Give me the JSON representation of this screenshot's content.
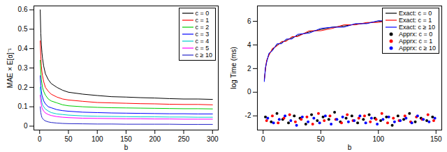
{
  "chart_data": [
    {
      "type": "line",
      "x_label": "b",
      "y_label": "MAE × E[α]⁻¹",
      "xlim": [
        -10,
        310
      ],
      "ylim": [
        -0.02,
        0.62
      ],
      "xticks": [
        0,
        50,
        100,
        150,
        200,
        250,
        300
      ],
      "yticks": [
        0,
        0.1,
        0.2,
        0.3,
        0.4,
        0.5,
        0.6
      ],
      "grid": false,
      "legend": "top-right",
      "x": [
        1,
        2,
        3,
        4,
        5,
        7,
        10,
        15,
        20,
        30,
        40,
        50,
        75,
        100,
        125,
        150,
        175,
        200,
        225,
        250,
        275,
        300
      ],
      "series": [
        {
          "name": "c = 0",
          "color": "#000000",
          "values": [
            0.6,
            0.48,
            0.42,
            0.38,
            0.35,
            0.31,
            0.27,
            0.24,
            0.22,
            0.2,
            0.185,
            0.175,
            0.165,
            0.158,
            0.152,
            0.15,
            0.147,
            0.145,
            0.142,
            0.14,
            0.14,
            0.138
          ]
        },
        {
          "name": "c = 1",
          "color": "#ff0000",
          "values": [
            0.44,
            0.36,
            0.31,
            0.28,
            0.26,
            0.23,
            0.2,
            0.18,
            0.165,
            0.15,
            0.14,
            0.135,
            0.128,
            0.122,
            0.12,
            0.118,
            0.116,
            0.115,
            0.113,
            0.112,
            0.112,
            0.11
          ]
        },
        {
          "name": "c = 2",
          "color": "#00cd00",
          "values": [
            0.34,
            0.28,
            0.24,
            0.22,
            0.2,
            0.18,
            0.16,
            0.14,
            0.13,
            0.12,
            0.11,
            0.105,
            0.1,
            0.097,
            0.095,
            0.094,
            0.093,
            0.092,
            0.091,
            0.09,
            0.09,
            0.089
          ]
        },
        {
          "name": "c = 3",
          "color": "#0000ff",
          "values": [
            0.26,
            0.21,
            0.18,
            0.16,
            0.15,
            0.13,
            0.115,
            0.1,
            0.095,
            0.085,
            0.08,
            0.077,
            0.072,
            0.07,
            0.068,
            0.067,
            0.066,
            0.065,
            0.064,
            0.064,
            0.063,
            0.063
          ]
        },
        {
          "name": "c = 4",
          "color": "#00cdcd",
          "values": [
            0.2,
            0.16,
            0.14,
            0.12,
            0.11,
            0.1,
            0.088,
            0.078,
            0.07,
            0.063,
            0.06,
            0.057,
            0.053,
            0.051,
            0.05,
            0.049,
            0.048,
            0.048,
            0.047,
            0.047,
            0.046,
            0.046
          ]
        },
        {
          "name": "c = 5",
          "color": "#ff00ff",
          "values": [
            0.16,
            0.13,
            0.11,
            0.095,
            0.088,
            0.078,
            0.068,
            0.06,
            0.055,
            0.049,
            0.046,
            0.044,
            0.041,
            0.04,
            0.039,
            0.038,
            0.038,
            0.037,
            0.037,
            0.036,
            0.036,
            0.036
          ]
        },
        {
          "name": "c ≥ 10",
          "color": "#2323c8",
          "values": [
            0.1,
            0.07,
            0.055,
            0.045,
            0.04,
            0.033,
            0.027,
            0.022,
            0.019,
            0.016,
            0.014,
            0.013,
            0.012,
            0.011,
            0.011,
            0.01,
            0.01,
            0.01,
            0.01,
            0.009,
            0.009,
            0.009
          ]
        }
      ]
    },
    {
      "type": "line",
      "x_label": "b",
      "y_label": "log Time (ms)",
      "xlim": [
        -5,
        155
      ],
      "ylim": [
        -3.2,
        7.3
      ],
      "xticks": [
        0,
        50,
        100,
        150
      ],
      "yticks": [
        -2,
        0,
        2,
        4,
        6
      ],
      "grid": false,
      "legend": "top-right",
      "series": [
        {
          "name": "Exact: c = 0",
          "type": "line",
          "color": "#000000",
          "x": [
            1,
            2,
            3,
            5,
            8,
            12,
            16,
            20,
            25,
            30,
            40,
            50,
            60,
            70,
            80,
            90,
            100,
            110
          ],
          "values": [
            1.0,
            2.0,
            2.6,
            3.2,
            3.6,
            4.0,
            4.2,
            4.4,
            4.6,
            4.8,
            5.1,
            5.3,
            5.5,
            5.6,
            5.75,
            5.85,
            6.0,
            6.05
          ]
        },
        {
          "name": "Exact: c = 1",
          "type": "line",
          "color": "#ff0000",
          "x": [
            1,
            2,
            3,
            5,
            8,
            12,
            16,
            20,
            25,
            30,
            40,
            50,
            60,
            70,
            80,
            90,
            100,
            110
          ],
          "values": [
            1.1,
            1.9,
            2.7,
            3.1,
            3.7,
            3.9,
            4.3,
            4.3,
            4.7,
            4.7,
            5.2,
            5.2,
            5.4,
            5.7,
            5.7,
            5.9,
            5.9,
            6.1
          ]
        },
        {
          "name": "Exact: c ≥ 10",
          "type": "line",
          "color": "#0000ff",
          "x": [
            1,
            2,
            3,
            5,
            8,
            12,
            16,
            20,
            25,
            30,
            40,
            50,
            60,
            70,
            80,
            90,
            100,
            110
          ],
          "values": [
            0.9,
            2.1,
            2.5,
            3.3,
            3.5,
            4.1,
            4.1,
            4.5,
            4.5,
            4.9,
            5.0,
            5.4,
            5.5,
            5.5,
            5.8,
            5.8,
            6.05,
            6.0
          ]
        },
        {
          "name": "Apprx: c = 0",
          "type": "scatter",
          "marker": "circle",
          "color": "#000000",
          "x": [
            2,
            7,
            12,
            17,
            22,
            27,
            32,
            37,
            42,
            47,
            52,
            57,
            62,
            67,
            72,
            77,
            82,
            87,
            92,
            97,
            102,
            107,
            112,
            117,
            122,
            127,
            132,
            137,
            142,
            147
          ],
          "values": [
            -2.1,
            -2.5,
            -1.8,
            -2.3,
            -2.6,
            -2.0,
            -2.2,
            -2.7,
            -1.9,
            -2.4,
            -2.1,
            -2.3,
            -1.7,
            -2.5,
            -2.2,
            -2.0,
            -2.6,
            -2.3,
            -1.9,
            -2.2,
            -2.4,
            -2.1,
            -2.8,
            -2.0,
            -2.3,
            -1.8,
            -2.5,
            -2.2,
            -2.4,
            -2.1
          ]
        },
        {
          "name": "Apprx: c = 1",
          "type": "scatter",
          "marker": "circle",
          "color": "#ff0000",
          "x": [
            3,
            8,
            13,
            18,
            23,
            28,
            33,
            38,
            43,
            48,
            53,
            58,
            63,
            68,
            73,
            78,
            83,
            88,
            93,
            98,
            103,
            108,
            113,
            118,
            123,
            128,
            133,
            138,
            143,
            148
          ],
          "values": [
            -2.4,
            -2.0,
            -2.6,
            -2.2,
            -1.9,
            -2.5,
            -2.3,
            -2.1,
            -2.7,
            -1.8,
            -2.4,
            -2.0,
            -2.3,
            -2.6,
            -1.9,
            -2.4,
            -2.2,
            -2.0,
            -2.5,
            -2.3,
            -1.8,
            -2.6,
            -2.2,
            -2.4,
            -2.0,
            -2.5,
            -2.1,
            -2.3,
            -1.9,
            -2.4
          ]
        },
        {
          "name": "Apprx: c ≥ 10",
          "type": "scatter",
          "marker": "circle",
          "color": "#0000ff",
          "x": [
            4,
            9,
            14,
            19,
            24,
            29,
            34,
            39,
            44,
            49,
            54,
            59,
            64,
            69,
            74,
            79,
            84,
            89,
            94,
            99,
            104,
            109,
            114,
            119,
            124,
            129,
            134,
            139,
            144,
            149
          ],
          "values": [
            -2.2,
            -2.6,
            -2.3,
            -2.0,
            -2.4,
            -2.8,
            -2.1,
            -2.5,
            -2.2,
            -2.6,
            -2.0,
            -2.7,
            -2.3,
            -2.1,
            -2.5,
            -2.4,
            -2.0,
            -2.6,
            -2.2,
            -2.7,
            -2.3,
            -2.1,
            -2.5,
            -2.4,
            -2.2,
            -2.6,
            -2.0,
            -2.3,
            -2.5,
            -2.2
          ]
        }
      ]
    }
  ]
}
